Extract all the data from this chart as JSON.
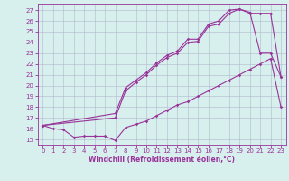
{
  "background_color": "#d7f0ee",
  "grid_color": "#b0b8cc",
  "line_color": "#993399",
  "tick_color": "#993399",
  "xlabel": "Windchill (Refroidissement éolien,°C)",
  "xlim_min": -0.5,
  "xlim_max": 23.5,
  "ylim_min": 14.5,
  "ylim_max": 27.6,
  "yticks": [
    15,
    16,
    17,
    18,
    19,
    20,
    21,
    22,
    23,
    24,
    25,
    26,
    27
  ],
  "xticks": [
    0,
    1,
    2,
    3,
    4,
    5,
    6,
    7,
    8,
    9,
    10,
    11,
    12,
    13,
    14,
    15,
    16,
    17,
    18,
    19,
    20,
    21,
    22,
    23
  ],
  "line1_x": [
    0,
    1,
    2,
    3,
    4,
    5,
    6,
    7,
    8,
    9,
    10,
    11,
    12,
    13,
    14,
    15,
    16,
    17,
    18,
    19,
    20,
    21,
    22,
    23
  ],
  "line1_y": [
    16.3,
    16.0,
    15.9,
    15.2,
    15.3,
    15.3,
    15.3,
    14.9,
    16.1,
    16.4,
    16.7,
    17.2,
    17.7,
    18.2,
    18.5,
    19.0,
    19.5,
    20.0,
    20.5,
    21.0,
    21.5,
    22.0,
    22.5,
    18.0
  ],
  "line2_x": [
    0,
    7,
    8,
    9,
    10,
    11,
    12,
    13,
    14,
    15,
    16,
    17,
    18,
    19,
    20,
    21,
    22,
    23
  ],
  "line2_y": [
    16.3,
    17.4,
    19.8,
    20.5,
    21.2,
    22.1,
    22.8,
    23.2,
    24.3,
    24.3,
    25.7,
    26.0,
    27.0,
    27.1,
    26.8,
    23.0,
    23.0,
    20.8
  ],
  "line3_x": [
    0,
    7,
    8,
    9,
    10,
    11,
    12,
    13,
    14,
    15,
    16,
    17,
    18,
    19,
    20,
    21,
    22,
    23
  ],
  "line3_y": [
    16.3,
    17.0,
    19.5,
    20.3,
    21.0,
    21.9,
    22.6,
    23.0,
    24.0,
    24.1,
    25.5,
    25.7,
    26.7,
    27.1,
    26.7,
    26.7,
    26.7,
    20.8
  ],
  "tick_fontsize": 5.0,
  "xlabel_fontsize": 5.5
}
